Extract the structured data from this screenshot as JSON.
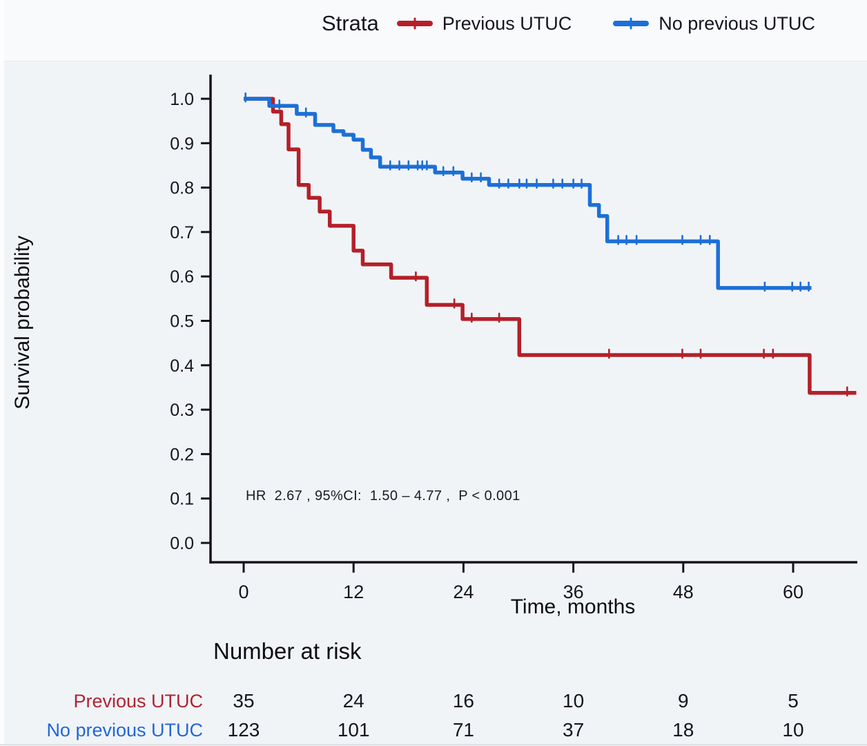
{
  "page": {
    "background": "#f1f4f7"
  },
  "legend": {
    "title": "Strata",
    "series": [
      {
        "label": "Previous UTUC",
        "color": "#b42029"
      },
      {
        "label": "No previous UTUC",
        "color": "#1d6fd8"
      }
    ]
  },
  "annotation": {
    "text": "HR  2.67 , 95%CI:  1.50 – 4.77 ,  P < 0.001"
  },
  "chart_data": {
    "type": "line",
    "subtype": "kaplan-meier-step",
    "title": "",
    "xlabel": "Time, months",
    "ylabel": "Survival probability",
    "xlim": [
      0,
      67
    ],
    "ylim": [
      0.0,
      1.0
    ],
    "x_ticks": [
      0,
      12,
      24,
      36,
      48,
      60
    ],
    "y_ticks": [
      1.0,
      0.9,
      0.8,
      0.7,
      0.6,
      0.5,
      0.4,
      0.3,
      0.2,
      0.1,
      0.0
    ],
    "grid": false,
    "legend_position": "top",
    "axis_color": "#17121d",
    "hr_annotation": "HR 2.67 , 95%CI: 1.50 – 4.77 , P < 0.001",
    "series": [
      {
        "name": "Previous UTUC",
        "color": "#b42029",
        "n_start": 35,
        "steps": [
          [
            0,
            1.0
          ],
          [
            3.2,
            0.971
          ],
          [
            4.1,
            0.943
          ],
          [
            4.9,
            0.886
          ],
          [
            6.0,
            0.806
          ],
          [
            7.1,
            0.777
          ],
          [
            8.3,
            0.746
          ],
          [
            9.4,
            0.714
          ],
          [
            12.0,
            0.658
          ],
          [
            13.0,
            0.627
          ],
          [
            16.1,
            0.597
          ],
          [
            20.0,
            0.536
          ],
          [
            23.9,
            0.504
          ],
          [
            30.1,
            0.423
          ],
          [
            61.8,
            0.338
          ]
        ],
        "end_month": 66.9,
        "censor_months": [
          18.8,
          23.0,
          24.9,
          27.9,
          39.9,
          47.9,
          49.9,
          56.8,
          57.8,
          65.9
        ]
      },
      {
        "name": "No previous UTUC",
        "color": "#1d6fd8",
        "n_start": 123,
        "steps": [
          [
            0,
            1.0
          ],
          [
            2.8,
            0.984
          ],
          [
            5.8,
            0.966
          ],
          [
            7.8,
            0.941
          ],
          [
            9.8,
            0.927
          ],
          [
            10.9,
            0.919
          ],
          [
            12.0,
            0.908
          ],
          [
            13.0,
            0.885
          ],
          [
            13.9,
            0.868
          ],
          [
            14.9,
            0.847
          ],
          [
            20.9,
            0.834
          ],
          [
            23.9,
            0.82
          ],
          [
            26.8,
            0.806
          ],
          [
            37.8,
            0.761
          ],
          [
            38.8,
            0.736
          ],
          [
            39.7,
            0.679
          ],
          [
            51.8,
            0.574
          ]
        ],
        "end_month": 62.0,
        "censor_months": [
          0.2,
          3.9,
          6.8,
          16.0,
          17.0,
          18.0,
          19.0,
          19.5,
          20.0,
          21.8,
          22.9,
          24.9,
          25.9,
          27.9,
          28.9,
          30.1,
          30.9,
          32.0,
          33.8,
          34.8,
          36.0,
          36.9,
          40.9,
          41.8,
          42.9,
          47.9,
          49.9,
          50.9,
          56.9,
          59.9,
          60.8,
          61.7
        ]
      }
    ]
  },
  "risk_table": {
    "title": "Number at risk",
    "time_points": [
      0,
      12,
      24,
      36,
      48,
      60
    ],
    "rows": [
      {
        "label": "Previous UTUC",
        "color": "#b02330",
        "values": [
          "35",
          "24",
          "16",
          "10",
          "9",
          "5"
        ]
      },
      {
        "label": "No previous UTUC",
        "color": "#2068d8",
        "values": [
          "123",
          "101",
          "71",
          "37",
          "18",
          "10"
        ]
      }
    ]
  }
}
